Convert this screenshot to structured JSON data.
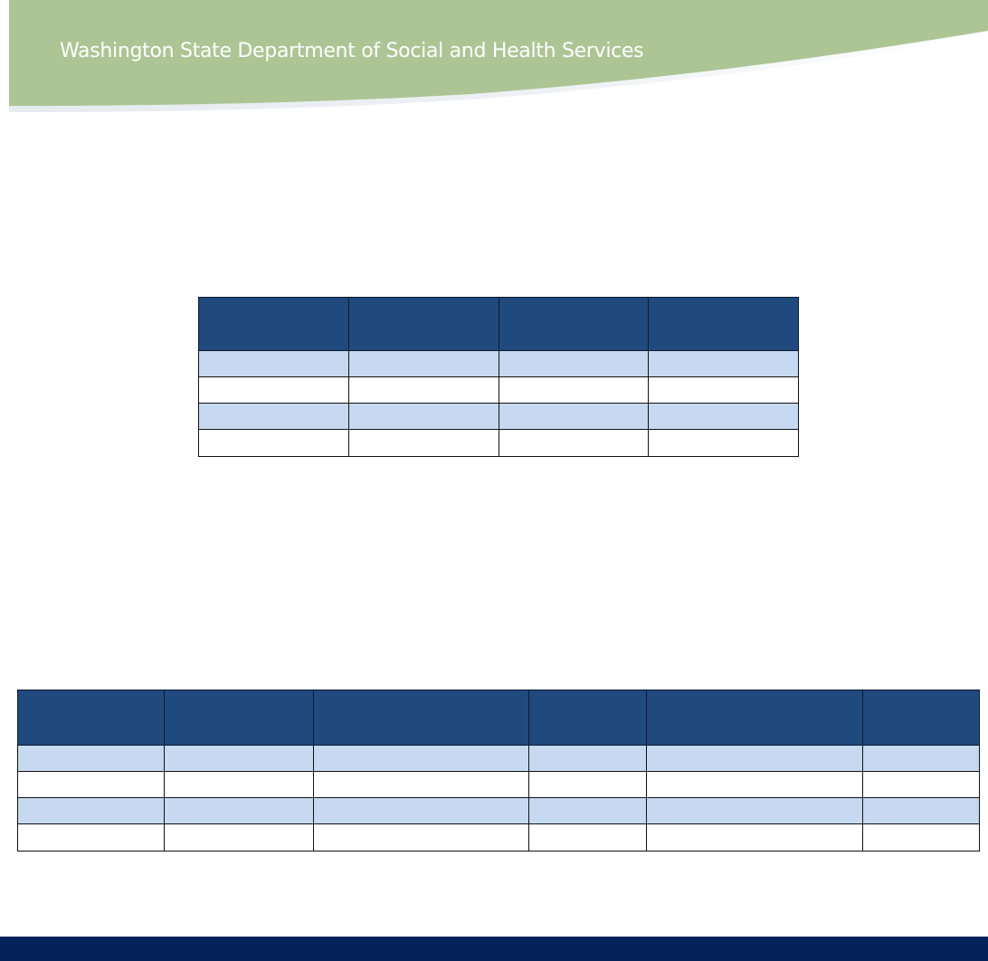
{
  "header": {
    "title": "Washington State Department of Social and Health Services",
    "banner_color": "#adc595",
    "title_color": "#ffffff"
  },
  "tables": [
    {
      "columns": 4,
      "header_row": [
        "",
        "",
        "",
        ""
      ],
      "rows": [
        [
          "",
          "",
          "",
          ""
        ],
        [
          "",
          "",
          "",
          ""
        ],
        [
          "",
          "",
          "",
          ""
        ],
        [
          "",
          "",
          "",
          ""
        ]
      ]
    },
    {
      "columns": 6,
      "header_row": [
        "",
        "",
        "",
        "",
        "",
        ""
      ],
      "rows": [
        [
          "",
          "",
          "",
          "",
          "",
          ""
        ],
        [
          "",
          "",
          "",
          "",
          "",
          ""
        ],
        [
          "",
          "",
          "",
          "",
          "",
          ""
        ],
        [
          "",
          "",
          "",
          "",
          "",
          ""
        ]
      ]
    }
  ],
  "colors": {
    "table_header": "#20497d",
    "table_band": "#c6d9f1",
    "footer": "#03215a"
  }
}
